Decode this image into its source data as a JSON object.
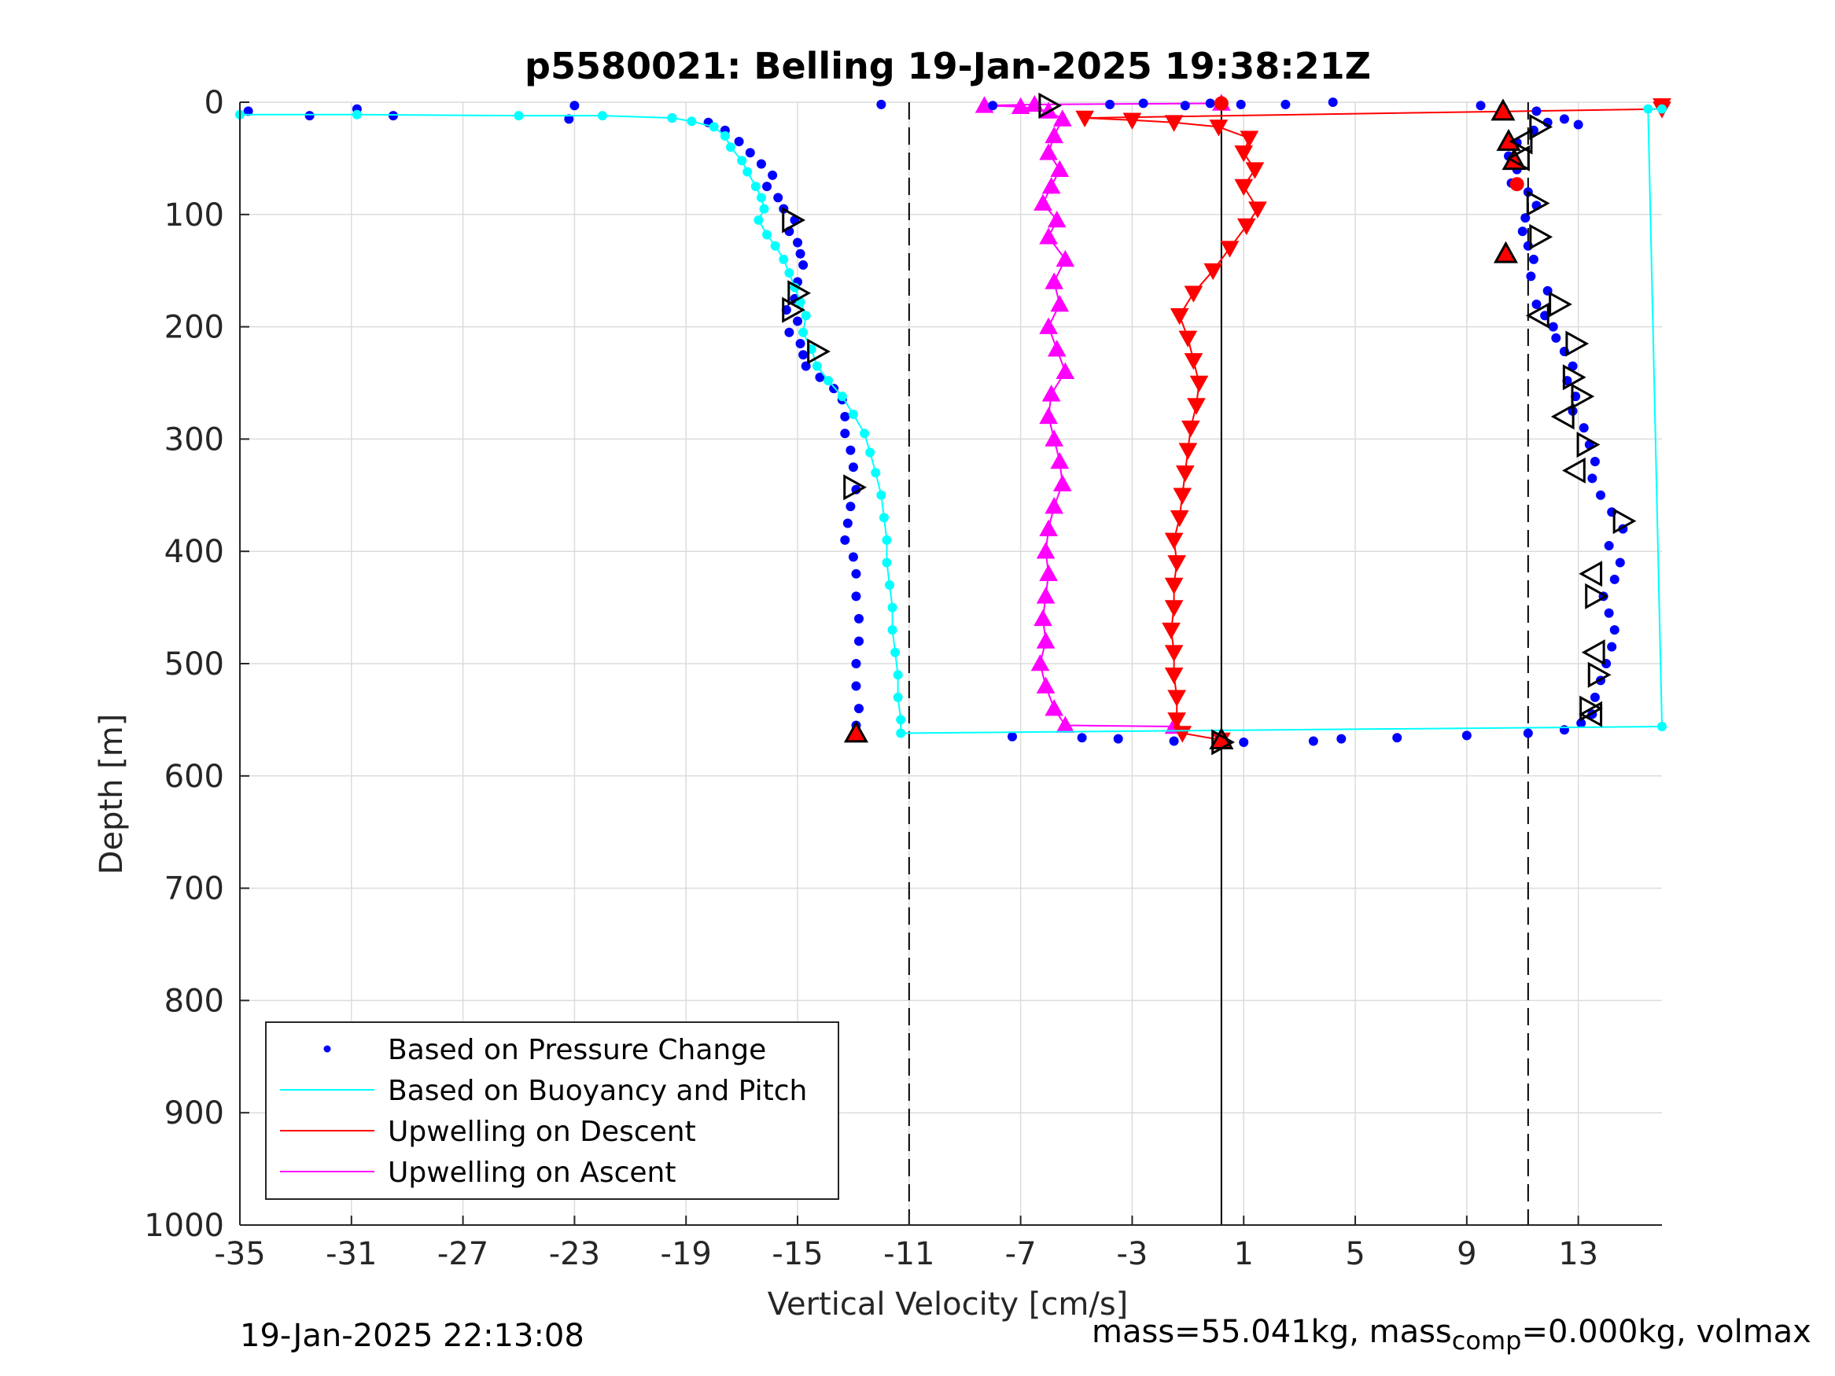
{
  "chart_data": {
    "type": "scatter",
    "title": "p5580021: Belling 19-Jan-2025 19:38:21Z",
    "xlabel": "Vertical Velocity [cm/s]",
    "ylabel": "Depth [m]",
    "xlim": [
      -35,
      16
    ],
    "ylim": [
      0,
      1000
    ],
    "y_reversed": true,
    "grid": true,
    "x_ticks": [
      "-35",
      "-31",
      "-27",
      "-23",
      "-19",
      "-15",
      "-11",
      "-7",
      "-3",
      "1",
      "5",
      "9",
      "13"
    ],
    "x_tick_values": [
      -35,
      -31,
      -27,
      -23,
      -19,
      -15,
      -11,
      -7,
      -3,
      1,
      5,
      9,
      13
    ],
    "y_ticks": [
      "0",
      "100",
      "200",
      "300",
      "400",
      "500",
      "600",
      "700",
      "800",
      "900",
      "1000"
    ],
    "y_tick_values": [
      0,
      100,
      200,
      300,
      400,
      500,
      600,
      700,
      800,
      900,
      1000
    ],
    "reference_lines": [
      {
        "style": "dashed",
        "x": -11
      },
      {
        "style": "solid",
        "x": 0.2
      },
      {
        "style": "dashed",
        "x": 11.2
      }
    ],
    "legend_position": "bottom-left",
    "series": [
      {
        "name": "Based on Pressure Change",
        "color": "#0000ff",
        "marker": "dot",
        "points": [
          [
            -34.7,
            8
          ],
          [
            -32.5,
            12
          ],
          [
            -30.8,
            6
          ],
          [
            -29.5,
            12
          ],
          [
            -23,
            3
          ],
          [
            -12,
            2
          ],
          [
            -23.2,
            15
          ],
          [
            -19.5,
            14
          ],
          [
            -18.2,
            18
          ],
          [
            -17.6,
            25
          ],
          [
            -17.1,
            35
          ],
          [
            -16.7,
            45
          ],
          [
            -16.3,
            55
          ],
          [
            -15.9,
            65
          ],
          [
            -16.1,
            75
          ],
          [
            -15.7,
            85
          ],
          [
            -15.5,
            95
          ],
          [
            -15.1,
            105
          ],
          [
            -15.3,
            115
          ],
          [
            -15.0,
            125
          ],
          [
            -14.9,
            135
          ],
          [
            -14.8,
            145
          ],
          [
            -15.0,
            160
          ],
          [
            -15.1,
            175
          ],
          [
            -15.4,
            185
          ],
          [
            -15.0,
            195
          ],
          [
            -15.3,
            205
          ],
          [
            -14.9,
            215
          ],
          [
            -14.8,
            225
          ],
          [
            -14.7,
            235
          ],
          [
            -14.2,
            245
          ],
          [
            -13.7,
            255
          ],
          [
            -13.4,
            265
          ],
          [
            -13.3,
            280
          ],
          [
            -13.3,
            295
          ],
          [
            -13.1,
            310
          ],
          [
            -13.0,
            325
          ],
          [
            -12.9,
            345
          ],
          [
            -13.1,
            360
          ],
          [
            -13.2,
            375
          ],
          [
            -13.3,
            390
          ],
          [
            -13.0,
            405
          ],
          [
            -12.9,
            420
          ],
          [
            -12.9,
            440
          ],
          [
            -12.8,
            460
          ],
          [
            -12.8,
            480
          ],
          [
            -12.9,
            500
          ],
          [
            -12.9,
            520
          ],
          [
            -12.8,
            540
          ],
          [
            -12.9,
            555
          ],
          [
            -12.9,
            565
          ],
          [
            -7.3,
            565
          ],
          [
            -4.8,
            566
          ],
          [
            -3.5,
            567
          ],
          [
            -1.5,
            569
          ],
          [
            1.0,
            570
          ],
          [
            3.5,
            569
          ],
          [
            4.5,
            567
          ],
          [
            6.5,
            566
          ],
          [
            9,
            564
          ],
          [
            11.2,
            562
          ],
          [
            12.5,
            559
          ],
          [
            13.1,
            553
          ],
          [
            13.5,
            545
          ],
          [
            13.6,
            530
          ],
          [
            13.8,
            515
          ],
          [
            14.0,
            500
          ],
          [
            14.2,
            485
          ],
          [
            14.3,
            470
          ],
          [
            14.1,
            455
          ],
          [
            13.9,
            440
          ],
          [
            14.3,
            425
          ],
          [
            14.5,
            410
          ],
          [
            14.1,
            395
          ],
          [
            14.6,
            380
          ],
          [
            14.2,
            365
          ],
          [
            13.8,
            350
          ],
          [
            13.5,
            335
          ],
          [
            13.6,
            320
          ],
          [
            13.4,
            305
          ],
          [
            13.2,
            290
          ],
          [
            12.8,
            275
          ],
          [
            12.9,
            262
          ],
          [
            12.6,
            248
          ],
          [
            12.8,
            235
          ],
          [
            12.5,
            222
          ],
          [
            12.2,
            210
          ],
          [
            12.1,
            200
          ],
          [
            11.8,
            190
          ],
          [
            11.5,
            180
          ],
          [
            11.9,
            168
          ],
          [
            11.3,
            155
          ],
          [
            11.4,
            140
          ],
          [
            11.2,
            128
          ],
          [
            11.0,
            115
          ],
          [
            11.1,
            103
          ],
          [
            11.5,
            92
          ],
          [
            11.2,
            80
          ],
          [
            10.6,
            72
          ],
          [
            10.8,
            60
          ],
          [
            10.5,
            48
          ],
          [
            10.8,
            36
          ],
          [
            11.4,
            25
          ],
          [
            11.9,
            18
          ],
          [
            12.5,
            15
          ],
          [
            13.0,
            20
          ],
          [
            10.3,
            5
          ],
          [
            9.5,
            3
          ],
          [
            11.5,
            8
          ],
          [
            -3.8,
            2
          ],
          [
            -2.6,
            1
          ],
          [
            -1.1,
            3
          ],
          [
            -0.2,
            1
          ],
          [
            0.9,
            2
          ],
          [
            2.5,
            2
          ],
          [
            4.2,
            0
          ],
          [
            -8.0,
            3
          ]
        ]
      },
      {
        "name": "Based on Buoyancy and Pitch",
        "color": "#00ffff",
        "marker": "line+dot",
        "points": [
          [
            -35,
            11
          ],
          [
            -30.8,
            11
          ],
          [
            -25,
            12
          ],
          [
            -22,
            12
          ],
          [
            -19.5,
            14
          ],
          [
            -18.8,
            17
          ],
          [
            -18.0,
            22
          ],
          [
            -17.6,
            30
          ],
          [
            -17.4,
            40
          ],
          [
            -17.0,
            52
          ],
          [
            -16.8,
            62
          ],
          [
            -16.5,
            75
          ],
          [
            -16.3,
            85
          ],
          [
            -16.2,
            95
          ],
          [
            -16.4,
            105
          ],
          [
            -16.1,
            118
          ],
          [
            -15.8,
            128
          ],
          [
            -15.5,
            140
          ],
          [
            -15.3,
            152
          ],
          [
            -15.1,
            165
          ],
          [
            -14.9,
            178
          ],
          [
            -14.7,
            190
          ],
          [
            -14.8,
            205
          ],
          [
            -14.5,
            220
          ],
          [
            -14.3,
            235
          ],
          [
            -13.9,
            248
          ],
          [
            -13.4,
            262
          ],
          [
            -13.0,
            278
          ],
          [
            -12.6,
            295
          ],
          [
            -12.4,
            312
          ],
          [
            -12.2,
            330
          ],
          [
            -12.0,
            350
          ],
          [
            -11.9,
            370
          ],
          [
            -11.8,
            390
          ],
          [
            -11.8,
            410
          ],
          [
            -11.7,
            430
          ],
          [
            -11.6,
            450
          ],
          [
            -11.6,
            470
          ],
          [
            -11.5,
            490
          ],
          [
            -11.4,
            510
          ],
          [
            -11.4,
            530
          ],
          [
            -11.3,
            550
          ],
          [
            -11.3,
            562
          ],
          [
            16,
            556
          ],
          [
            15.5,
            6
          ],
          [
            16,
            6
          ]
        ]
      },
      {
        "name": "Upwelling on Descent",
        "color": "#ff0000",
        "marker": "triangle-down",
        "points": [
          [
            16,
            3
          ],
          [
            16,
            6
          ],
          [
            -4.7,
            14
          ],
          [
            -3.0,
            16
          ],
          [
            -1.5,
            18
          ],
          [
            0.1,
            22
          ],
          [
            1.2,
            32
          ],
          [
            1.0,
            45
          ],
          [
            1.4,
            60
          ],
          [
            1.0,
            75
          ],
          [
            1.5,
            95
          ],
          [
            1.1,
            110
          ],
          [
            0.5,
            130
          ],
          [
            -0.1,
            150
          ],
          [
            -0.8,
            170
          ],
          [
            -1.3,
            190
          ],
          [
            -1.0,
            210
          ],
          [
            -0.8,
            230
          ],
          [
            -0.6,
            250
          ],
          [
            -0.7,
            270
          ],
          [
            -0.9,
            290
          ],
          [
            -1.0,
            310
          ],
          [
            -1.1,
            330
          ],
          [
            -1.2,
            350
          ],
          [
            -1.3,
            370
          ],
          [
            -1.5,
            390
          ],
          [
            -1.4,
            410
          ],
          [
            -1.5,
            430
          ],
          [
            -1.5,
            450
          ],
          [
            -1.6,
            470
          ],
          [
            -1.5,
            490
          ],
          [
            -1.5,
            510
          ],
          [
            -1.4,
            530
          ],
          [
            -1.4,
            550
          ],
          [
            -1.2,
            562
          ],
          [
            0.2,
            568
          ]
        ]
      },
      {
        "name": "Upwelling on Ascent",
        "color": "#ff00ff",
        "marker": "triangle-up",
        "points": [
          [
            0.2,
            1
          ],
          [
            -6.5,
            2
          ],
          [
            -8.3,
            3
          ],
          [
            -7.0,
            4
          ],
          [
            -6.0,
            8
          ],
          [
            -5.5,
            15
          ],
          [
            -5.8,
            30
          ],
          [
            -6.0,
            45
          ],
          [
            -5.6,
            60
          ],
          [
            -5.9,
            75
          ],
          [
            -6.2,
            90
          ],
          [
            -5.7,
            105
          ],
          [
            -6.0,
            120
          ],
          [
            -5.4,
            140
          ],
          [
            -5.8,
            160
          ],
          [
            -5.6,
            180
          ],
          [
            -6.0,
            200
          ],
          [
            -5.7,
            220
          ],
          [
            -5.4,
            240
          ],
          [
            -5.9,
            260
          ],
          [
            -6.0,
            280
          ],
          [
            -5.8,
            300
          ],
          [
            -5.6,
            320
          ],
          [
            -5.5,
            340
          ],
          [
            -5.8,
            360
          ],
          [
            -6.0,
            380
          ],
          [
            -6.1,
            400
          ],
          [
            -6.0,
            420
          ],
          [
            -6.1,
            440
          ],
          [
            -6.2,
            460
          ],
          [
            -6.1,
            480
          ],
          [
            -6.3,
            500
          ],
          [
            -6.1,
            520
          ],
          [
            -5.8,
            540
          ],
          [
            -5.4,
            555
          ],
          [
            -1.5,
            556
          ]
        ]
      }
    ],
    "event_markers_black_right": [
      [
        -6.0,
        3
      ],
      [
        -15.2,
        105
      ],
      [
        -15.0,
        170
      ],
      [
        -15.2,
        185
      ],
      [
        -14.3,
        222
      ],
      [
        -13.0,
        343
      ],
      [
        11.6,
        22
      ],
      [
        11.5,
        90
      ],
      [
        11.6,
        120
      ],
      [
        12.3,
        180
      ],
      [
        12.9,
        215
      ],
      [
        12.8,
        245
      ],
      [
        13.1,
        262
      ],
      [
        13.3,
        305
      ],
      [
        14.6,
        373
      ],
      [
        13.6,
        440
      ],
      [
        13.7,
        510
      ],
      [
        13.4,
        540
      ],
      [
        0.2,
        570
      ]
    ],
    "event_markers_black_left": [
      [
        11.0,
        35
      ],
      [
        10.9,
        50
      ],
      [
        11.6,
        190
      ],
      [
        12.5,
        280
      ],
      [
        12.9,
        328
      ],
      [
        13.5,
        420
      ],
      [
        13.6,
        490
      ],
      [
        13.5,
        545
      ]
    ],
    "event_markers_red_up": [
      [
        10.3,
        8
      ],
      [
        10.5,
        35
      ],
      [
        10.7,
        52
      ],
      [
        10.4,
        135
      ],
      [
        -12.9,
        562
      ],
      [
        0.2,
        568
      ]
    ],
    "event_markers_red_dot": [
      [
        0.2,
        1
      ],
      [
        10.8,
        73
      ]
    ]
  },
  "footer": {
    "timestamp": "19-Jan-2025 22:13:08",
    "mass_prefix": "mass=55.041kg, mass",
    "mass_sub": "comp",
    "mass_suffix": "=0.000kg, volmax"
  }
}
